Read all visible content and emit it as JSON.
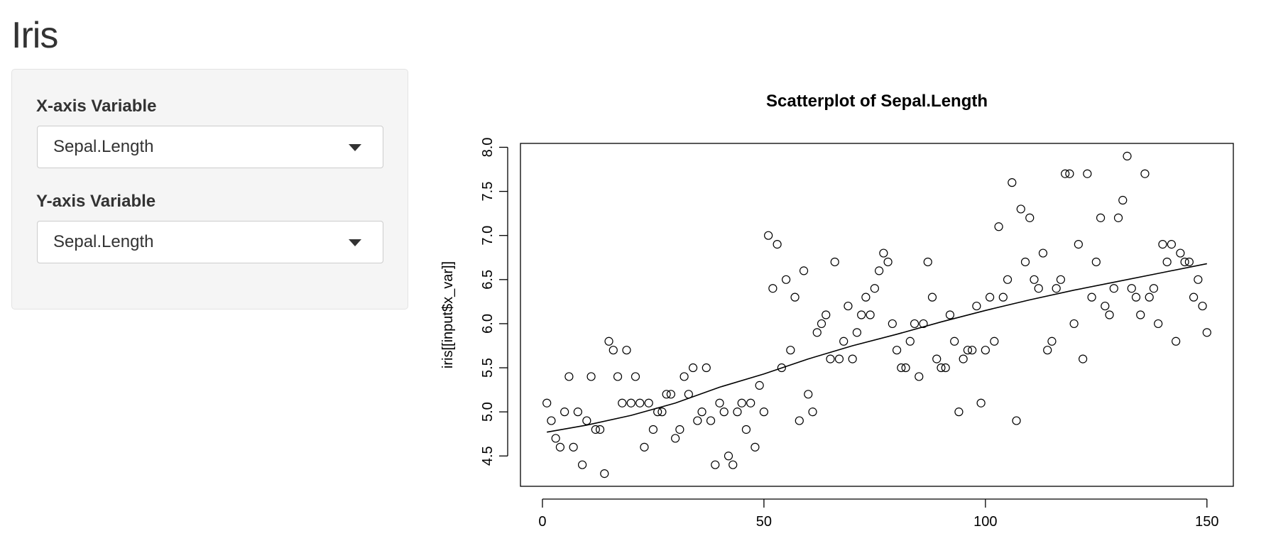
{
  "app": {
    "title": "Iris"
  },
  "sidebar": {
    "x_label": "X-axis Variable",
    "x_selected": "Sepal.Length",
    "y_label": "Y-axis Variable",
    "y_selected": "Sepal.Length"
  },
  "chart_data": {
    "type": "scatter",
    "title": "Scatterplot of Sepal.Length",
    "xlabel": "",
    "ylabel": "iris[[input$x_var]]",
    "xlim": [
      1,
      150
    ],
    "ylim": [
      4.3,
      7.9
    ],
    "x_ticks": [
      0,
      50,
      100,
      150
    ],
    "y_ticks": [
      4.5,
      5.0,
      5.5,
      6.0,
      6.5,
      7.0,
      7.5,
      8.0
    ],
    "grid": false,
    "marker": "open-circle",
    "series": [
      {
        "values": [
          5.1,
          4.9,
          4.7,
          4.6,
          5.0,
          5.4,
          4.6,
          5.0,
          4.4,
          4.9,
          5.4,
          4.8,
          4.8,
          4.3,
          5.8,
          5.7,
          5.4,
          5.1,
          5.7,
          5.1,
          5.4,
          5.1,
          4.6,
          5.1,
          4.8,
          5.0,
          5.0,
          5.2,
          5.2,
          4.7,
          4.8,
          5.4,
          5.2,
          5.5,
          4.9,
          5.0,
          5.5,
          4.9,
          4.4,
          5.1,
          5.0,
          4.5,
          4.4,
          5.0,
          5.1,
          4.8,
          5.1,
          4.6,
          5.3,
          5.0,
          7.0,
          6.4,
          6.9,
          5.5,
          6.5,
          5.7,
          6.3,
          4.9,
          6.6,
          5.2,
          5.0,
          5.9,
          6.0,
          6.1,
          5.6,
          6.7,
          5.6,
          5.8,
          6.2,
          5.6,
          5.9,
          6.1,
          6.3,
          6.1,
          6.4,
          6.6,
          6.8,
          6.7,
          6.0,
          5.7,
          5.5,
          5.5,
          5.8,
          6.0,
          5.4,
          6.0,
          6.7,
          6.3,
          5.6,
          5.5,
          5.5,
          6.1,
          5.8,
          5.0,
          5.6,
          5.7,
          5.7,
          6.2,
          5.1,
          5.7,
          6.3,
          5.8,
          7.1,
          6.3,
          6.5,
          7.6,
          4.9,
          7.3,
          6.7,
          7.2,
          6.5,
          6.4,
          6.8,
          5.7,
          5.8,
          6.4,
          6.5,
          7.7,
          7.7,
          6.0,
          6.9,
          5.6,
          7.7,
          6.3,
          6.7,
          7.2,
          6.2,
          6.1,
          6.4,
          7.2,
          7.4,
          7.9,
          6.4,
          6.3,
          6.1,
          7.7,
          6.3,
          6.4,
          6.0,
          6.9,
          6.7,
          6.9,
          5.8,
          6.8,
          6.7,
          6.7,
          6.3,
          6.5,
          6.2,
          5.9
        ]
      }
    ],
    "trend_line": {
      "x": [
        1,
        10,
        20,
        30,
        40,
        50,
        60,
        70,
        80,
        90,
        100,
        110,
        120,
        130,
        140,
        150
      ],
      "y": [
        4.77,
        4.85,
        4.96,
        5.1,
        5.28,
        5.43,
        5.6,
        5.75,
        5.88,
        6.02,
        6.15,
        6.27,
        6.38,
        6.48,
        6.58,
        6.68
      ]
    }
  }
}
